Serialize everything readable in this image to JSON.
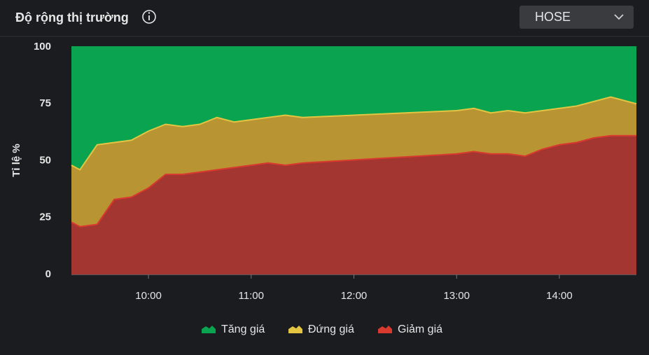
{
  "header": {
    "title": "Độ rộng thị trường",
    "exchange": "HOSE"
  },
  "chart_data": {
    "type": "stacked_area",
    "ylabel": "Tỉ lệ %",
    "x": [
      "09:15",
      "09:20",
      "09:30",
      "09:40",
      "09:50",
      "10:00",
      "10:10",
      "10:20",
      "10:30",
      "10:40",
      "10:50",
      "11:00",
      "11:10",
      "11:20",
      "11:30",
      "13:00",
      "13:10",
      "13:20",
      "13:30",
      "13:40",
      "13:50",
      "14:00",
      "14:10",
      "14:20",
      "14:30",
      "14:45"
    ],
    "series": [
      {
        "name": "Tăng giá",
        "color": "#0aa34f",
        "line": "#0aa34f",
        "values": [
          52,
          54,
          43,
          42,
          41,
          37,
          34,
          35,
          34,
          31,
          33,
          32,
          31,
          30,
          31,
          28,
          27,
          29,
          28,
          29,
          28,
          27,
          26,
          24,
          22,
          25
        ]
      },
      {
        "name": "Đứng giá",
        "color": "#b99433",
        "line": "#e3c542",
        "values": [
          25,
          25,
          35,
          25,
          25,
          25,
          22,
          21,
          21,
          23,
          20,
          20,
          20,
          22,
          20,
          19,
          19,
          18,
          19,
          19,
          17,
          16,
          16,
          16,
          17,
          14
        ]
      },
      {
        "name": "Giảm giá",
        "color": "#a33630",
        "line": "#d93a2f",
        "values": [
          23,
          21,
          22,
          33,
          34,
          38,
          44,
          44,
          45,
          46,
          47,
          48,
          49,
          48,
          49,
          53,
          54,
          53,
          53,
          52,
          55,
          57,
          58,
          60,
          61,
          61
        ]
      }
    ],
    "xlim": [
      "09:15",
      "14:45"
    ],
    "xticks": [
      "10:00",
      "11:00",
      "12:00",
      "13:00",
      "14:00"
    ],
    "ylim": [
      0,
      100
    ],
    "yticks": [
      0,
      25,
      50,
      75,
      100
    ],
    "legend": "bottom"
  }
}
